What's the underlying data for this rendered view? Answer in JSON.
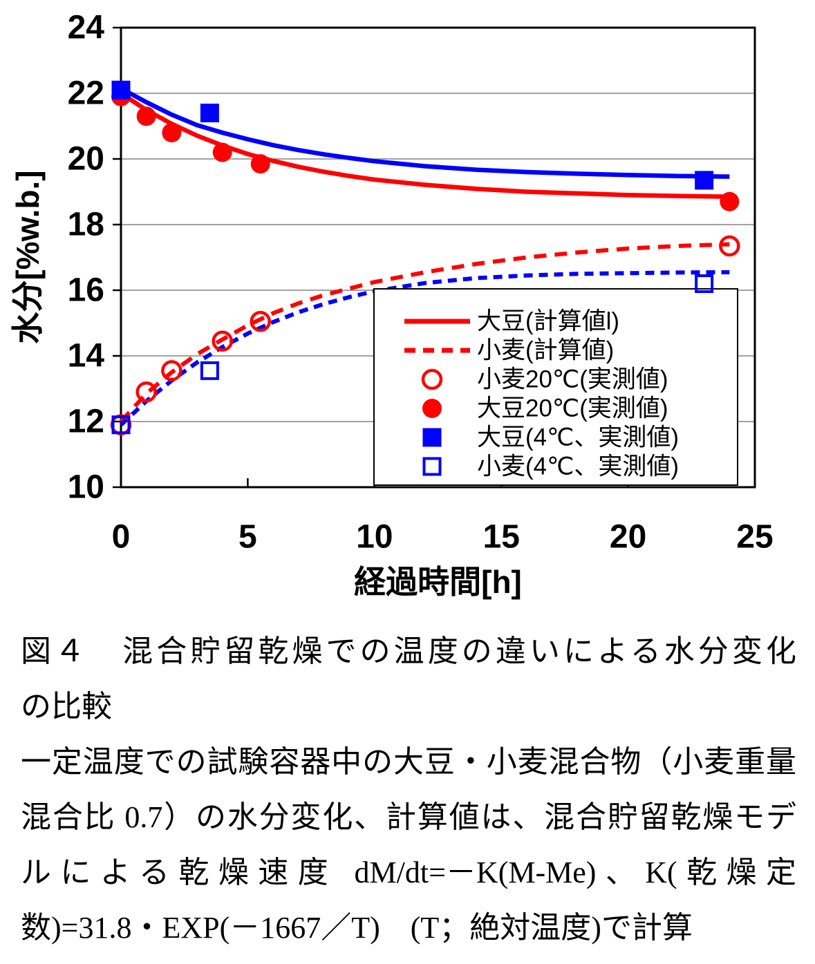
{
  "chart_data": {
    "type": "line",
    "title": "",
    "xlabel": "経過時間[h]",
    "ylabel": "水分[%w.b.]",
    "xlim": [
      0,
      25
    ],
    "ylim": [
      10,
      24
    ],
    "xticks": [
      0,
      5,
      10,
      15,
      20,
      25
    ],
    "yticks": [
      10,
      12,
      14,
      16,
      18,
      20,
      22,
      24
    ],
    "grid": "horizontal gray lines at y=12..22",
    "colors": {
      "red": "#ff0000",
      "blue": "#0000ff",
      "grid": "#848484",
      "frame": "#000000"
    },
    "lines": [
      {
        "id": "soy-calc-20c",
        "name": "大豆(計算値l)",
        "color": "#ff0000",
        "style": "solid",
        "points": [
          [
            0,
            22.0
          ],
          [
            1,
            21.49
          ],
          [
            2,
            21.07
          ],
          [
            3,
            20.71
          ],
          [
            4,
            20.41
          ],
          [
            5,
            20.15
          ],
          [
            6,
            19.94
          ],
          [
            7,
            19.76
          ],
          [
            8,
            19.61
          ],
          [
            9,
            19.48
          ],
          [
            10,
            19.37
          ],
          [
            12,
            19.21
          ],
          [
            14,
            19.09
          ],
          [
            16,
            19.0
          ],
          [
            18,
            18.95
          ],
          [
            20,
            18.9
          ],
          [
            22,
            18.87
          ],
          [
            24,
            18.85
          ]
        ]
      },
      {
        "id": "soy-calc-4c",
        "name": null,
        "color": "#0000ff",
        "style": "solid",
        "points": [
          [
            0,
            22.15
          ],
          [
            1,
            21.73
          ],
          [
            2,
            21.35
          ],
          [
            3,
            21.03
          ],
          [
            4,
            20.8
          ],
          [
            5,
            20.6
          ],
          [
            6,
            20.42
          ],
          [
            7,
            20.27
          ],
          [
            8,
            20.14
          ],
          [
            9,
            20.03
          ],
          [
            10,
            19.93
          ],
          [
            12,
            19.78
          ],
          [
            14,
            19.67
          ],
          [
            16,
            19.6
          ],
          [
            18,
            19.55
          ],
          [
            20,
            19.51
          ],
          [
            22,
            19.48
          ],
          [
            24,
            19.46
          ]
        ]
      },
      {
        "id": "wheat-calc-20c",
        "name": "小麦(計算値)",
        "color": "#ff0000",
        "style": "dashed",
        "points": [
          [
            0,
            12.0
          ],
          [
            1,
            12.85
          ],
          [
            2,
            13.5
          ],
          [
            3,
            14.05
          ],
          [
            4,
            14.5
          ],
          [
            5,
            14.93
          ],
          [
            6,
            15.3
          ],
          [
            7,
            15.6
          ],
          [
            8,
            15.85
          ],
          [
            9,
            16.05
          ],
          [
            10,
            16.25
          ],
          [
            12,
            16.55
          ],
          [
            14,
            16.8
          ],
          [
            16,
            17.0
          ],
          [
            18,
            17.15
          ],
          [
            20,
            17.27
          ],
          [
            22,
            17.35
          ],
          [
            24,
            17.4
          ]
        ]
      },
      {
        "id": "wheat-calc-4c",
        "name": null,
        "color": "#0000ff",
        "style": "dashed",
        "points": [
          [
            0,
            11.9
          ],
          [
            1,
            12.62
          ],
          [
            2,
            13.25
          ],
          [
            3,
            13.8
          ],
          [
            4,
            14.27
          ],
          [
            5,
            14.68
          ],
          [
            6,
            15.03
          ],
          [
            7,
            15.33
          ],
          [
            8,
            15.58
          ],
          [
            9,
            15.79
          ],
          [
            10,
            15.97
          ],
          [
            12,
            16.22
          ],
          [
            14,
            16.37
          ],
          [
            16,
            16.45
          ],
          [
            18,
            16.5
          ],
          [
            20,
            16.52
          ],
          [
            22,
            16.54
          ],
          [
            24,
            16.55
          ]
        ]
      }
    ],
    "scatter": [
      {
        "id": "wheat-20c",
        "name": "小麦20℃(実測値)",
        "color": "#ff0000",
        "marker": "circle-open",
        "points": [
          [
            0,
            11.9
          ],
          [
            1,
            12.9
          ],
          [
            2,
            13.55
          ],
          [
            4,
            14.45
          ],
          [
            5.5,
            15.05
          ],
          [
            24,
            17.35
          ]
        ]
      },
      {
        "id": "soy-20c",
        "name": "大豆20℃(実測値)",
        "color": "#ff0000",
        "marker": "circle-filled",
        "points": [
          [
            0,
            21.9
          ],
          [
            1,
            21.3
          ],
          [
            2,
            20.8
          ],
          [
            4,
            20.2
          ],
          [
            5.5,
            19.85
          ],
          [
            24,
            18.7
          ]
        ]
      },
      {
        "id": "soy-4c",
        "name": "大豆(4℃、実測値)",
        "color": "#0000ff",
        "marker": "square-filled",
        "points": [
          [
            0,
            22.1
          ],
          [
            3.5,
            21.4
          ],
          [
            23,
            19.35
          ]
        ]
      },
      {
        "id": "wheat-4c",
        "name": "小麦(4℃、実測値)",
        "color": "#0000ff",
        "marker": "square-open",
        "points": [
          [
            0,
            11.9
          ],
          [
            3.5,
            13.55
          ],
          [
            23,
            16.2
          ]
        ]
      }
    ],
    "legend": {
      "position": "inside bottom-right, bordered box",
      "entries": [
        "soy-calc-20c",
        "wheat-calc-20c",
        "wheat-20c",
        "soy-20c",
        "soy-4c",
        "wheat-4c"
      ]
    }
  },
  "caption": {
    "lines": [
      "図４　混合貯留乾燥での温度の違いによる水分変化",
      "の比較",
      "一定温度での試験容器中の大豆・小麦混合物（小麦重量",
      "混合比 0.7）の水分変化、計算値は、混合貯留乾燥モデ",
      "ルによる乾燥速度 dM/dt=－K(M-Me)、K(乾燥定",
      "数)=31.8・EXP(－1667／T)　(T；絶対温度)で計算"
    ]
  }
}
